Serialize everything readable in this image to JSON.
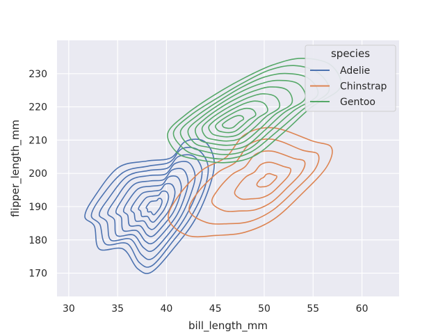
{
  "chart_data": {
    "type": "kde-contour",
    "title": "",
    "xlabel": "bill_length_mm",
    "ylabel": "flipper_length_mm",
    "xlim": [
      28.8,
      63.8
    ],
    "ylim": [
      163,
      240
    ],
    "xticks": [
      30,
      35,
      40,
      45,
      50,
      55,
      60
    ],
    "yticks": [
      170,
      180,
      190,
      200,
      210,
      220,
      230
    ],
    "grid": true,
    "background": "#eaeaf2",
    "legend": {
      "title": "species",
      "placement": "top-right",
      "entries": [
        "Adelie",
        "Chinstrap",
        "Gentoo"
      ]
    },
    "series": [
      {
        "name": "Adelie",
        "color": "#4c72b0",
        "center": [
          38.8,
          190
        ],
        "outer_contour": [
          [
            31.5,
            187
          ],
          [
            32.5,
            193
          ],
          [
            35,
            202
          ],
          [
            38,
            204
          ],
          [
            40.5,
            205
          ],
          [
            42,
            210
          ],
          [
            44,
            210
          ],
          [
            45,
            204
          ],
          [
            44.5,
            196
          ],
          [
            43,
            186
          ],
          [
            41,
            178
          ],
          [
            38.5,
            170
          ],
          [
            37,
            171
          ],
          [
            35.5,
            177
          ],
          [
            33,
            177
          ],
          [
            32.5,
            184
          ]
        ],
        "levels": 9
      },
      {
        "name": "Chinstrap",
        "color": "#dd8452",
        "center": [
          50.5,
          198
        ],
        "outer_contour": [
          [
            40,
            186
          ],
          [
            41,
            193
          ],
          [
            43.5,
            201
          ],
          [
            46,
            205
          ],
          [
            48,
            212
          ],
          [
            51,
            214
          ],
          [
            55,
            210
          ],
          [
            57,
            208
          ],
          [
            56.5,
            202
          ],
          [
            54,
            194
          ],
          [
            51,
            186
          ],
          [
            48,
            182
          ],
          [
            45,
            181
          ],
          [
            42,
            181
          ]
        ],
        "levels": 5
      },
      {
        "name": "Gentoo",
        "color": "#55a868",
        "center": [
          46.5,
          215
        ],
        "outer_contour": [
          [
            40,
            212
          ],
          [
            42,
            218
          ],
          [
            45,
            224
          ],
          [
            48,
            229
          ],
          [
            51,
            233
          ],
          [
            54,
            235
          ],
          [
            57,
            233
          ],
          [
            58,
            226
          ],
          [
            55,
            220
          ],
          [
            52,
            212
          ],
          [
            49,
            205
          ],
          [
            46,
            203
          ],
          [
            43,
            204
          ],
          [
            41,
            206
          ]
        ],
        "levels": 9
      }
    ]
  }
}
